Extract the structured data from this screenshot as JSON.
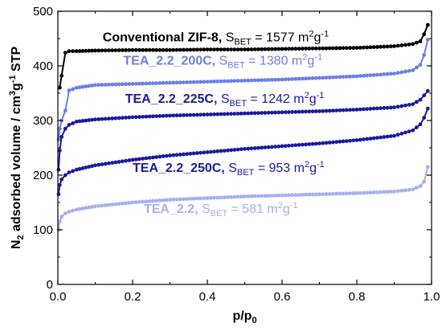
{
  "chart_data": {
    "type": "line",
    "xlabel": "p/p",
    "xlabel_sub": "0",
    "ylabel_parts": [
      "N",
      "2",
      " adsorbed volume / cm",
      "3",
      "g",
      "-1",
      " STP"
    ],
    "xlim": [
      0.0,
      1.0
    ],
    "ylim": [
      0,
      500
    ],
    "x_ticks": [
      "0.0",
      "0.2",
      "0.4",
      "0.6",
      "0.8",
      "1.0"
    ],
    "y_ticks": [
      "0",
      "100",
      "200",
      "300",
      "400",
      "500"
    ],
    "series": [
      {
        "key": "conventional",
        "name": "Conventional ZIF-8,",
        "sbet": "1577",
        "color": "#000000",
        "x": [
          0.005,
          0.01,
          0.02,
          0.03,
          0.05,
          0.1,
          0.2,
          0.3,
          0.4,
          0.5,
          0.6,
          0.7,
          0.8,
          0.9,
          0.95,
          0.97,
          0.98,
          0.99
        ],
        "y": [
          360,
          382,
          424,
          427,
          427,
          428,
          429,
          429,
          430,
          430,
          431,
          432,
          433,
          436,
          440,
          445,
          458,
          475
        ]
      },
      {
        "key": "tea_200c",
        "name": "TEA_2.2_200C,",
        "sbet": "1380",
        "color": "#6b7fe8",
        "x": [
          0.002,
          0.005,
          0.01,
          0.02,
          0.03,
          0.05,
          0.1,
          0.2,
          0.3,
          0.4,
          0.5,
          0.6,
          0.7,
          0.8,
          0.9,
          0.95,
          0.97,
          0.98,
          0.99
        ],
        "y": [
          265,
          285,
          300,
          318,
          355,
          360,
          365,
          367,
          369,
          371,
          373,
          375,
          378,
          381,
          386,
          392,
          402,
          420,
          448
        ]
      },
      {
        "key": "tea_225c",
        "name": "TEA_2.2_225C,",
        "sbet": "1242",
        "color": "#1a1a9c",
        "x": [
          0.002,
          0.005,
          0.01,
          0.02,
          0.03,
          0.05,
          0.1,
          0.2,
          0.3,
          0.4,
          0.5,
          0.6,
          0.7,
          0.8,
          0.9,
          0.95,
          0.97,
          0.98,
          0.99
        ],
        "y": [
          210,
          245,
          270,
          285,
          292,
          298,
          302,
          306,
          309,
          311,
          313,
          315,
          317,
          320,
          324,
          330,
          338,
          346,
          354
        ]
      },
      {
        "key": "tea_250c",
        "name": "TEA_2.2_250C,",
        "sbet": "953",
        "color": "#1a1a9c",
        "x": [
          0.002,
          0.005,
          0.01,
          0.02,
          0.03,
          0.05,
          0.1,
          0.2,
          0.3,
          0.4,
          0.5,
          0.6,
          0.7,
          0.8,
          0.9,
          0.95,
          0.97,
          0.98,
          0.99
        ],
        "y": [
          165,
          182,
          192,
          200,
          205,
          210,
          218,
          228,
          236,
          242,
          248,
          253,
          258,
          264,
          272,
          282,
          293,
          305,
          322
        ]
      },
      {
        "key": "tea_22",
        "name": "TEA_2.2,",
        "sbet": "581",
        "color": "#a5aff0",
        "x": [
          0.002,
          0.005,
          0.01,
          0.02,
          0.03,
          0.05,
          0.1,
          0.2,
          0.3,
          0.4,
          0.5,
          0.6,
          0.7,
          0.8,
          0.9,
          0.95,
          0.97,
          0.98,
          0.99
        ],
        "y": [
          100,
          115,
          124,
          130,
          133,
          137,
          143,
          150,
          155,
          158,
          161,
          163,
          165,
          167,
          170,
          174,
          180,
          188,
          215
        ]
      }
    ],
    "annotations": [
      {
        "series": "conventional",
        "x": 0.12,
        "y": 445
      },
      {
        "series": "tea_200c",
        "x": 0.175,
        "y": 402
      },
      {
        "series": "tea_225c",
        "x": 0.18,
        "y": 332
      },
      {
        "series": "tea_250c",
        "x": 0.2,
        "y": 206
      },
      {
        "series": "tea_22",
        "x": 0.23,
        "y": 131
      }
    ],
    "sbet_prefix": "S",
    "sbet_sub": "BET",
    "sbet_eq": " = ",
    "sbet_unit_main": " m",
    "sbet_unit_sup1": "2",
    "sbet_unit_mid": "g",
    "sbet_unit_sup2": "-1"
  }
}
